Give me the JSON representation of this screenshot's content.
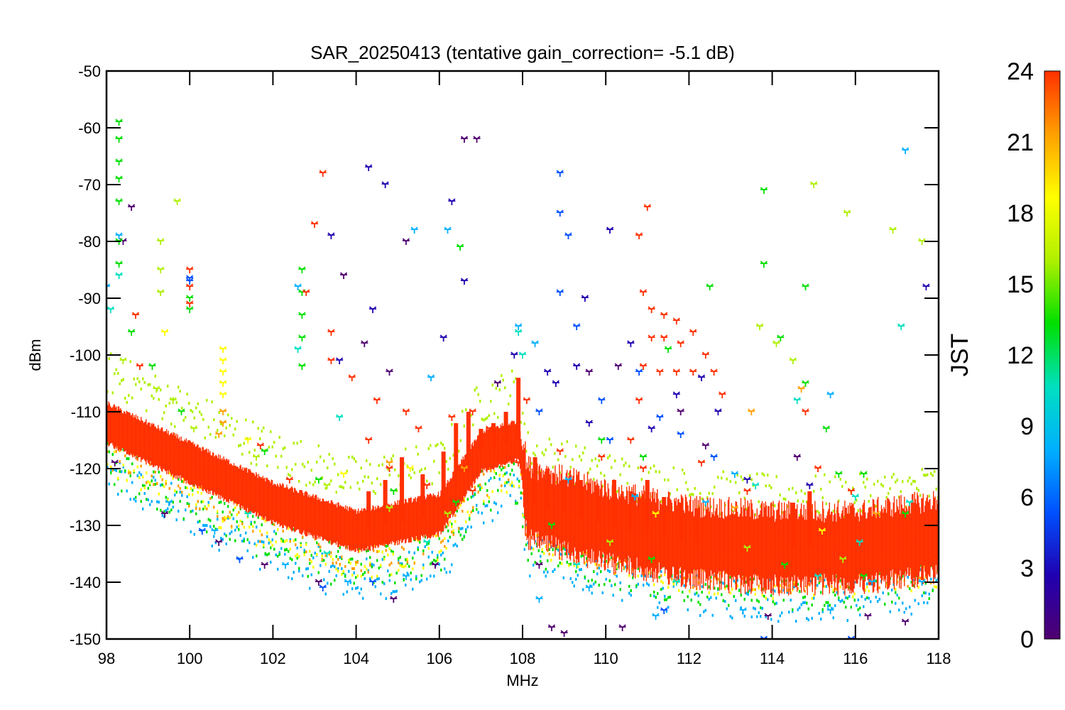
{
  "chart_data": {
    "type": "scatter",
    "title": "SAR_20250413 (tentative gain_correction= -5.1 dB)",
    "xlabel": "MHz",
    "ylabel": "dBm",
    "xlim": [
      98,
      118
    ],
    "ylim": [
      -150,
      -50
    ],
    "xticks": [
      "98",
      "100",
      "102",
      "104",
      "106",
      "108",
      "110",
      "112",
      "114",
      "116",
      "118"
    ],
    "yticks": [
      "-50",
      "-60",
      "-70",
      "-80",
      "-90",
      "-100",
      "-110",
      "-120",
      "-130",
      "-140",
      "-150"
    ],
    "grid": false,
    "marker": "asterisk",
    "colorbar": {
      "label": "JST",
      "range": [
        0,
        24
      ],
      "ticks": [
        "24",
        "21",
        "18",
        "15",
        "12",
        "9",
        "6",
        "3",
        "0"
      ],
      "colormap": [
        "#500070",
        "#2000b0",
        "#0050ff",
        "#00b0ff",
        "#00e0c0",
        "#00e000",
        "#b0f000",
        "#ffff00",
        "#ffa000",
        "#ff3000"
      ]
    },
    "noise_floor": {
      "dense_hour": 23,
      "x": [
        98,
        100,
        102,
        104,
        106,
        107,
        107.9,
        108.1,
        110,
        112,
        114,
        116,
        118
      ],
      "y": [
        -112,
        -119,
        -126,
        -131,
        -128,
        -117,
        -115,
        -126,
        -130,
        -133,
        -134,
        -134,
        -132
      ]
    },
    "series": [
      {
        "hour": 0.5,
        "points": [
          [
            106.6,
            -62
          ],
          [
            106.9,
            -62
          ],
          [
            98.6,
            -74
          ],
          [
            98.4,
            -80
          ],
          [
            105.2,
            -80
          ],
          [
            103.7,
            -86
          ],
          [
            104.2,
            -98
          ],
          [
            104.8,
            -103
          ],
          [
            107.4,
            -105
          ],
          [
            109.6,
            -103
          ],
          [
            110.3,
            -102
          ],
          [
            111.8,
            -110
          ],
          [
            112.4,
            -116
          ],
          [
            114.6,
            -118
          ],
          [
            108.4,
            -137
          ],
          [
            110.4,
            -148
          ],
          [
            113.9,
            -146
          ],
          [
            108.7,
            -148
          ],
          [
            109,
            -149
          ],
          [
            104.9,
            -143
          ],
          [
            103.1,
            -140
          ],
          [
            101.8,
            -137
          ],
          [
            100.7,
            -133
          ],
          [
            99.4,
            -128
          ],
          [
            98.2,
            -119
          ],
          [
            116.3,
            -146
          ],
          [
            117.2,
            -147
          ],
          [
            105.9,
            -137
          ]
        ]
      },
      {
        "hour": 3,
        "points": [
          [
            103.4,
            -79
          ],
          [
            104.3,
            -67
          ],
          [
            104.7,
            -70
          ],
          [
            106.3,
            -73
          ],
          [
            106.6,
            -87
          ],
          [
            107.8,
            -100
          ],
          [
            108.6,
            -103
          ],
          [
            108.8,
            -105
          ],
          [
            109.3,
            -102
          ],
          [
            109.6,
            -112
          ],
          [
            110.6,
            -98
          ],
          [
            111.1,
            -113
          ],
          [
            111.7,
            -107
          ],
          [
            112.3,
            -104
          ],
          [
            112.7,
            -110
          ],
          [
            113.4,
            -122
          ],
          [
            114.9,
            -123
          ],
          [
            104.4,
            -92
          ],
          [
            103.6,
            -101
          ],
          [
            106.1,
            -97
          ],
          [
            117.7,
            -88
          ],
          [
            110.1,
            -78
          ],
          [
            109.5,
            -90
          ]
        ]
      },
      {
        "hour": 5.5,
        "points": [
          [
            100,
            -87
          ],
          [
            100,
            -86.5
          ],
          [
            108.9,
            -68
          ],
          [
            108.9,
            -75
          ],
          [
            109.1,
            -79
          ],
          [
            108.9,
            -89
          ],
          [
            109.3,
            -95
          ],
          [
            110.8,
            -103
          ],
          [
            109.9,
            -108
          ],
          [
            108.4,
            -110
          ],
          [
            110.1,
            -115
          ],
          [
            111.3,
            -111
          ],
          [
            111.8,
            -114
          ],
          [
            112.6,
            -118
          ],
          [
            100.3,
            -131
          ],
          [
            101.2,
            -136
          ],
          [
            103.2,
            -141
          ],
          [
            104.4,
            -140
          ],
          [
            111.4,
            -145
          ],
          [
            113.8,
            -150
          ],
          [
            115.9,
            -150
          ]
        ]
      },
      {
        "hour": 7.5,
        "points": [
          [
            102.6,
            -88
          ],
          [
            105.4,
            -78
          ],
          [
            106.2,
            -78
          ],
          [
            108.3,
            -98
          ],
          [
            109.1,
            -122
          ],
          [
            110.7,
            -125
          ],
          [
            112.4,
            -126
          ],
          [
            98.3,
            -79
          ],
          [
            98,
            -88
          ],
          [
            105.8,
            -104
          ],
          [
            107.9,
            -95
          ],
          [
            99.5,
            -126
          ],
          [
            100.6,
            -131
          ],
          [
            102.3,
            -137
          ],
          [
            103.8,
            -140
          ],
          [
            105.2,
            -139
          ],
          [
            108.4,
            -143
          ],
          [
            109.6,
            -141
          ],
          [
            111.2,
            -146
          ],
          [
            113.3,
            -145
          ],
          [
            115.4,
            -145
          ],
          [
            116.4,
            -140
          ],
          [
            117.6,
            -140
          ],
          [
            117.2,
            -64
          ],
          [
            115.4,
            -107
          ],
          [
            113.1,
            -121
          ]
        ]
      },
      {
        "hour": 10,
        "points": [
          [
            98.3,
            -86
          ],
          [
            98.1,
            -92
          ],
          [
            102.6,
            -99
          ],
          [
            103.6,
            -111
          ],
          [
            107.9,
            -96
          ],
          [
            108,
            -100
          ],
          [
            113.6,
            -123
          ],
          [
            116.1,
            -133
          ],
          [
            117.3,
            -126
          ],
          [
            116,
            -125
          ],
          [
            101.4,
            -128
          ],
          [
            103.3,
            -135
          ],
          [
            105.7,
            -133
          ],
          [
            109.3,
            -137
          ],
          [
            111.7,
            -140
          ],
          [
            115.1,
            -139
          ],
          [
            117.1,
            -95
          ],
          [
            114.6,
            -108
          ]
        ]
      },
      {
        "hour": 13.5,
        "points": [
          [
            98.3,
            -59
          ],
          [
            98.3,
            -62
          ],
          [
            98.3,
            -66
          ],
          [
            98.3,
            -69
          ],
          [
            98.3,
            -73
          ],
          [
            98.3,
            -80
          ],
          [
            98.3,
            -84
          ],
          [
            100,
            -90
          ],
          [
            100,
            -92
          ],
          [
            102.7,
            -85
          ],
          [
            102.7,
            -89
          ],
          [
            102.7,
            -93
          ],
          [
            102.7,
            -97
          ],
          [
            102.7,
            -102
          ],
          [
            106.5,
            -81
          ],
          [
            109.9,
            -115
          ],
          [
            110.9,
            -118
          ],
          [
            112.5,
            -88
          ],
          [
            113.8,
            -71
          ],
          [
            113.8,
            -84
          ],
          [
            114.2,
            -97
          ],
          [
            114.8,
            -105
          ],
          [
            115.3,
            -113
          ],
          [
            115.6,
            -121
          ],
          [
            116.2,
            -121
          ],
          [
            117.2,
            -128
          ],
          [
            114.8,
            -88
          ],
          [
            111.5,
            -99
          ],
          [
            98.6,
            -96
          ],
          [
            99.1,
            -102
          ],
          [
            99.8,
            -110
          ],
          [
            101.8,
            -117
          ],
          [
            103.1,
            -122
          ],
          [
            104.9,
            -124
          ],
          [
            106.4,
            -126
          ],
          [
            108.7,
            -130
          ],
          [
            111.1,
            -136
          ],
          [
            114.3,
            -137
          ],
          [
            116.2,
            -139
          ]
        ]
      },
      {
        "hour": 17,
        "points": [
          [
            99.3,
            -80
          ],
          [
            99.3,
            -85
          ],
          [
            99.3,
            -89
          ],
          [
            99.6,
            -108
          ],
          [
            98.4,
            -101
          ],
          [
            99.2,
            -106
          ],
          [
            100.1,
            -113
          ],
          [
            101.6,
            -118
          ],
          [
            103.3,
            -123
          ],
          [
            104.8,
            -127
          ],
          [
            106.2,
            -128
          ],
          [
            110.1,
            -133
          ],
          [
            113.4,
            -134
          ],
          [
            115.7,
            -136
          ],
          [
            113.7,
            -95
          ],
          [
            114.1,
            -98
          ],
          [
            114.5,
            -101
          ],
          [
            115,
            -70
          ],
          [
            115.8,
            -75
          ],
          [
            116.9,
            -78
          ],
          [
            117.6,
            -80
          ],
          [
            99.7,
            -73
          ]
        ]
      },
      {
        "hour": 19,
        "points": [
          [
            100.8,
            -99
          ],
          [
            100.8,
            -101
          ],
          [
            100.8,
            -103
          ],
          [
            100.8,
            -105
          ],
          [
            100.8,
            -107
          ],
          [
            99.4,
            -96
          ],
          [
            101.4,
            -115
          ],
          [
            103.7,
            -121
          ],
          [
            105.3,
            -120
          ],
          [
            111.2,
            -128
          ],
          [
            115.2,
            -131
          ]
        ]
      },
      {
        "hour": 21,
        "points": [
          [
            100.8,
            -110
          ],
          [
            100.8,
            -112
          ],
          [
            100.7,
            -114
          ],
          [
            104.8,
            -119
          ],
          [
            106.6,
            -120
          ],
          [
            113.1,
            -127
          ],
          [
            116.5,
            -128
          ],
          [
            113.5,
            -110
          ],
          [
            114.7,
            -106
          ]
        ]
      },
      {
        "hour": 23,
        "points": [
          [
            103.2,
            -68
          ],
          [
            103,
            -77
          ],
          [
            102.8,
            -89
          ],
          [
            103.4,
            -101
          ],
          [
            104.5,
            -108
          ],
          [
            105.2,
            -110
          ],
          [
            105.5,
            -113
          ],
          [
            104.3,
            -115
          ],
          [
            103.9,
            -104
          ],
          [
            103.4,
            -96
          ],
          [
            110.8,
            -79
          ],
          [
            111,
            -74
          ],
          [
            110.9,
            -89
          ],
          [
            100,
            -85
          ],
          [
            100,
            -88
          ],
          [
            100,
            -91
          ],
          [
            111.1,
            -92
          ],
          [
            111.4,
            -93
          ],
          [
            111.7,
            -94
          ],
          [
            112.1,
            -96
          ],
          [
            112.4,
            -100
          ],
          [
            112.6,
            -103
          ],
          [
            112.8,
            -107
          ],
          [
            111.1,
            -97
          ],
          [
            111.4,
            -97
          ],
          [
            111.8,
            -98
          ],
          [
            110.9,
            -102
          ],
          [
            111.3,
            -103
          ],
          [
            111.7,
            -103
          ],
          [
            112.1,
            -103
          ],
          [
            110.8,
            -108
          ],
          [
            110.6,
            -115
          ],
          [
            110.9,
            -120
          ],
          [
            106.3,
            -111
          ],
          [
            106.8,
            -110
          ],
          [
            107.2,
            -113
          ],
          [
            107.6,
            -115
          ],
          [
            108.1,
            -108
          ],
          [
            107.9,
            -119
          ],
          [
            106.8,
            -124
          ],
          [
            108.9,
            -117
          ],
          [
            109.9,
            -118
          ],
          [
            112.3,
            -119
          ],
          [
            113.4,
            -124
          ],
          [
            115.1,
            -120
          ],
          [
            115.9,
            -124
          ],
          [
            114.8,
            -110
          ],
          [
            101.7,
            -116
          ],
          [
            102.4,
            -122
          ],
          [
            98.8,
            -102
          ],
          [
            98.7,
            -93
          ],
          [
            104.8,
            -120
          ],
          [
            105.7,
            -123
          ]
        ]
      }
    ]
  }
}
